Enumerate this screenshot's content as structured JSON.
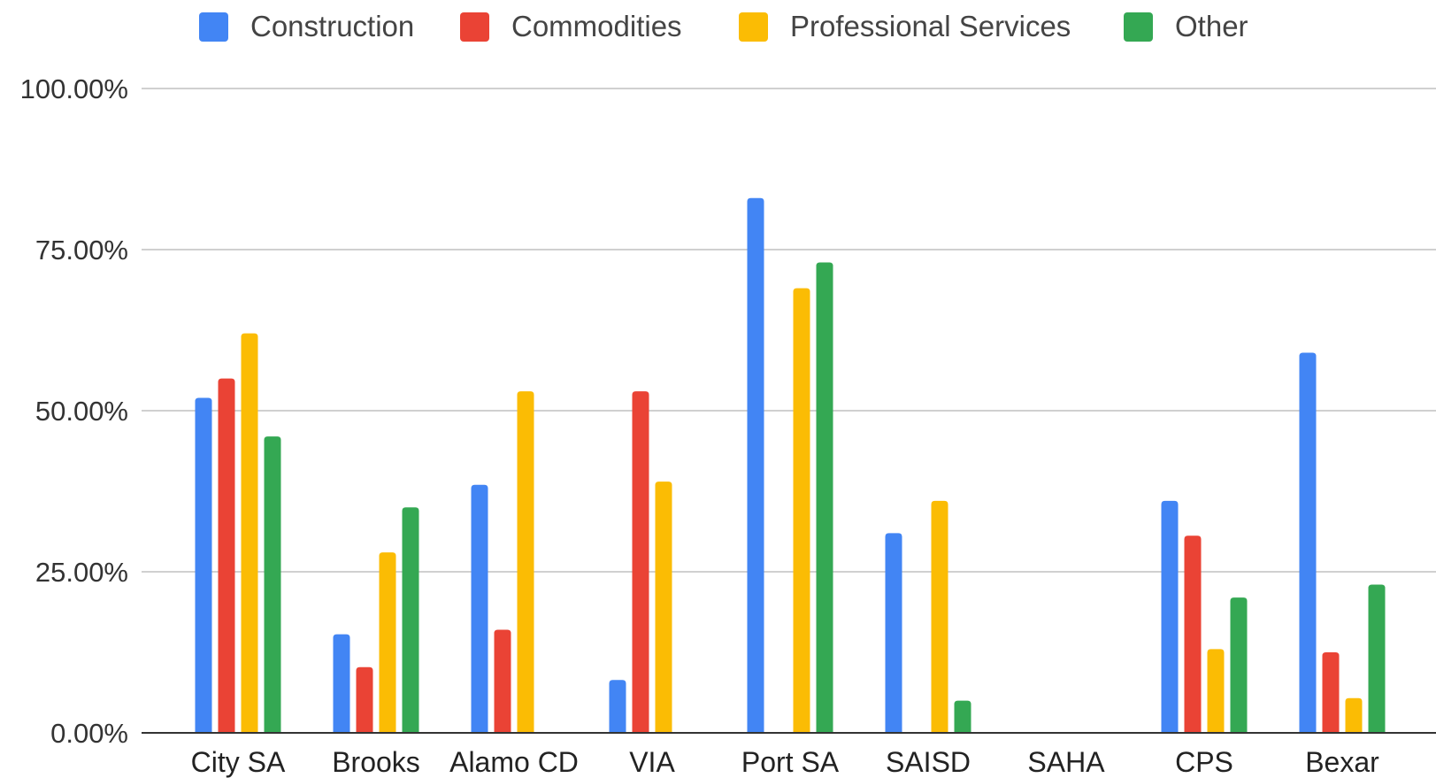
{
  "chart_data": {
    "type": "bar",
    "categories": [
      "City SA",
      "Brooks",
      "Alamo CD",
      "VIA",
      "Port SA",
      "SAISD",
      "SAHA",
      "CPS",
      "Bexar"
    ],
    "series": [
      {
        "name": "Construction",
        "color": "#4285F4",
        "values": [
          52,
          15.3,
          38.5,
          8.2,
          83,
          31,
          0,
          36,
          59
        ]
      },
      {
        "name": "Commodities",
        "color": "#EA4335",
        "values": [
          55,
          10.2,
          16,
          53,
          0,
          0,
          0,
          30.6,
          12.5
        ]
      },
      {
        "name": "Professional Services",
        "color": "#FBBC04",
        "values": [
          62,
          28,
          53,
          39,
          69,
          36,
          0,
          13,
          5.4
        ]
      },
      {
        "name": "Other",
        "color": "#34A853",
        "values": [
          46,
          35,
          0,
          0,
          73,
          5,
          0,
          21,
          23
        ]
      }
    ],
    "y_ticks": [
      "0.00%",
      "25.00%",
      "50.00%",
      "75.00%",
      "100.00%"
    ],
    "ylim": [
      0,
      100
    ],
    "grid": true,
    "legend_position": "top",
    "title": "",
    "xlabel": "",
    "ylabel": ""
  }
}
